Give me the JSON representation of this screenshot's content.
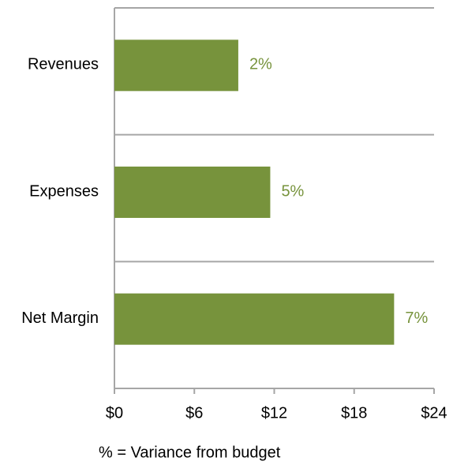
{
  "chart_data": {
    "type": "bar",
    "orientation": "horizontal",
    "categories": [
      "Revenues",
      "Expenses",
      "Net Margin"
    ],
    "values": [
      9.3,
      11.7,
      21.0
    ],
    "annotations": [
      "2%",
      "5%",
      "7%"
    ],
    "color": "#77933c",
    "xlim": [
      0,
      24
    ],
    "xticks": [
      {
        "value": 0,
        "label": "$0"
      },
      {
        "value": 6,
        "label": "$6"
      },
      {
        "value": 12,
        "label": "$12"
      },
      {
        "value": 18,
        "label": "$18"
      },
      {
        "value": 24,
        "label": "$24"
      }
    ],
    "footnote": "% = Variance from budget"
  }
}
